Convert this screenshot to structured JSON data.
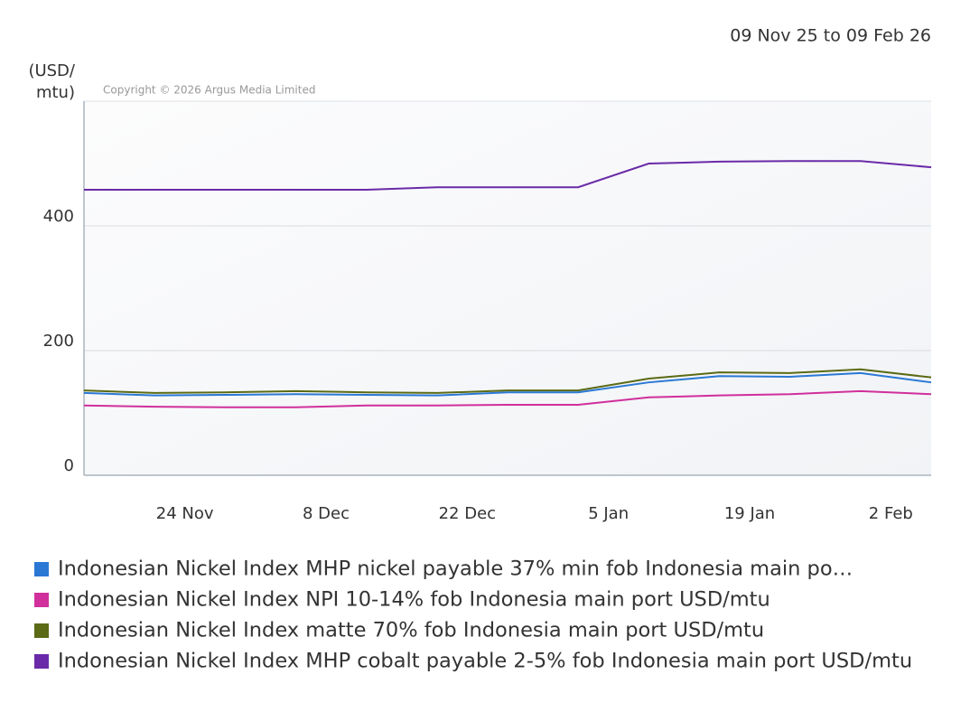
{
  "chart_data": {
    "type": "line",
    "date_range": "09 Nov 25 to 09 Feb 26",
    "y_label": [
      "(USD/",
      "mtu)"
    ],
    "copyright": "Copyright © 2026 Argus Media Limited",
    "x": [
      "2025-11-14",
      "2025-11-21",
      "2025-11-28",
      "2025-12-05",
      "2025-12-12",
      "2025-12-19",
      "2025-12-26",
      "2026-01-02",
      "2026-01-09",
      "2026-01-16",
      "2026-01-23",
      "2026-01-30",
      "2026-02-06"
    ],
    "xlim": [
      "2025-11-14",
      "2026-02-06"
    ],
    "xticks": [
      {
        "value": "2025-11-24",
        "label": "24 Nov"
      },
      {
        "value": "2025-12-08",
        "label": "8 Dec"
      },
      {
        "value": "2025-12-22",
        "label": "22 Dec"
      },
      {
        "value": "2026-01-05",
        "label": "5 Jan"
      },
      {
        "value": "2026-01-19",
        "label": "19 Jan"
      },
      {
        "value": "2026-02-02",
        "label": "2 Feb"
      }
    ],
    "ylim": [
      0,
      600
    ],
    "yticks": [
      0,
      200,
      400
    ],
    "grid": true,
    "series": [
      {
        "name": "Indonesian Nickel Index MHP nickel payable 37% min fob Indonesia main po…",
        "color": "#2a78d4",
        "values": [
          132,
          128,
          129,
          130,
          129,
          128,
          133,
          133,
          149,
          159,
          158,
          164,
          149
        ]
      },
      {
        "name": "Indonesian Nickel Index NPI 10-14% fob Indonesia main port USD/mtu",
        "color": "#d02f9c",
        "values": [
          112,
          110,
          109,
          109,
          112,
          112,
          113,
          113,
          125,
          128,
          130,
          135,
          130
        ]
      },
      {
        "name": "Indonesian Nickel Index matte 70% fob Indonesia main port USD/mtu",
        "color": "#5b6a14",
        "values": [
          136,
          132,
          133,
          135,
          133,
          132,
          136,
          136,
          155,
          165,
          164,
          170,
          157
        ]
      },
      {
        "name": "Indonesian Nickel Index MHP cobalt payable 2-5% fob Indonesia main port USD/mtu",
        "color": "#6a2aa8",
        "values": [
          458,
          458,
          458,
          458,
          458,
          462,
          462,
          462,
          500,
          503,
          504,
          504,
          494
        ]
      }
    ]
  }
}
